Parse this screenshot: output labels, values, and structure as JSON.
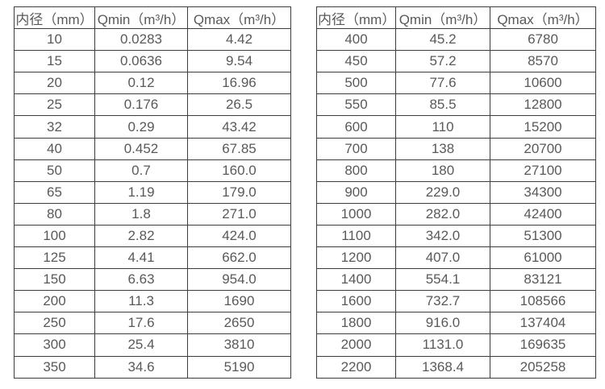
{
  "colors": {
    "background": "#ffffff",
    "text": "#595959",
    "border": "#3d3d3d"
  },
  "tables": [
    {
      "name": "flow-rates-small-diameters",
      "headers": [
        "内径（mm）",
        "Qmin（m³/h）",
        "Qmax（m³/h）"
      ],
      "rows": [
        [
          "10",
          "0.0283",
          "4.42"
        ],
        [
          "15",
          "0.0636",
          "9.54"
        ],
        [
          "20",
          "0.12",
          "16.96"
        ],
        [
          "25",
          "0.176",
          "26.5"
        ],
        [
          "32",
          "0.29",
          "43.42"
        ],
        [
          "40",
          "0.452",
          "67.85"
        ],
        [
          "50",
          "0.7",
          "160.0"
        ],
        [
          "65",
          "1.19",
          "179.0"
        ],
        [
          "80",
          "1.8",
          "271.0"
        ],
        [
          "100",
          "2.82",
          "424.0"
        ],
        [
          "125",
          "4.41",
          "662.0"
        ],
        [
          "150",
          "6.63",
          "954.0"
        ],
        [
          "200",
          "11.3",
          "1690"
        ],
        [
          "250",
          "17.6",
          "2650"
        ],
        [
          "300",
          "25.4",
          "3810"
        ],
        [
          "350",
          "34.6",
          "5190"
        ]
      ]
    },
    {
      "name": "flow-rates-large-diameters",
      "headers": [
        "内径（mm）",
        "Qmin（m³/h）",
        "Qmax（m³/h）"
      ],
      "rows": [
        [
          "400",
          "45.2",
          "6780"
        ],
        [
          "450",
          "57.2",
          "8570"
        ],
        [
          "500",
          "77.6",
          "10600"
        ],
        [
          "550",
          "85.5",
          "12800"
        ],
        [
          "600",
          "110",
          "15200"
        ],
        [
          "700",
          "138",
          "20700"
        ],
        [
          "800",
          "180",
          "27100"
        ],
        [
          "900",
          "229.0",
          "34300"
        ],
        [
          "1000",
          "282.0",
          "42400"
        ],
        [
          "1100",
          "342.0",
          "51300"
        ],
        [
          "1200",
          "407.0",
          "61000"
        ],
        [
          "1400",
          "554.1",
          "83121"
        ],
        [
          "1600",
          "732.7",
          "108566"
        ],
        [
          "1800",
          "916.0",
          "137404"
        ],
        [
          "2000",
          "1131.0",
          "169635"
        ],
        [
          "2200",
          "1368.4",
          "205258"
        ]
      ]
    }
  ]
}
